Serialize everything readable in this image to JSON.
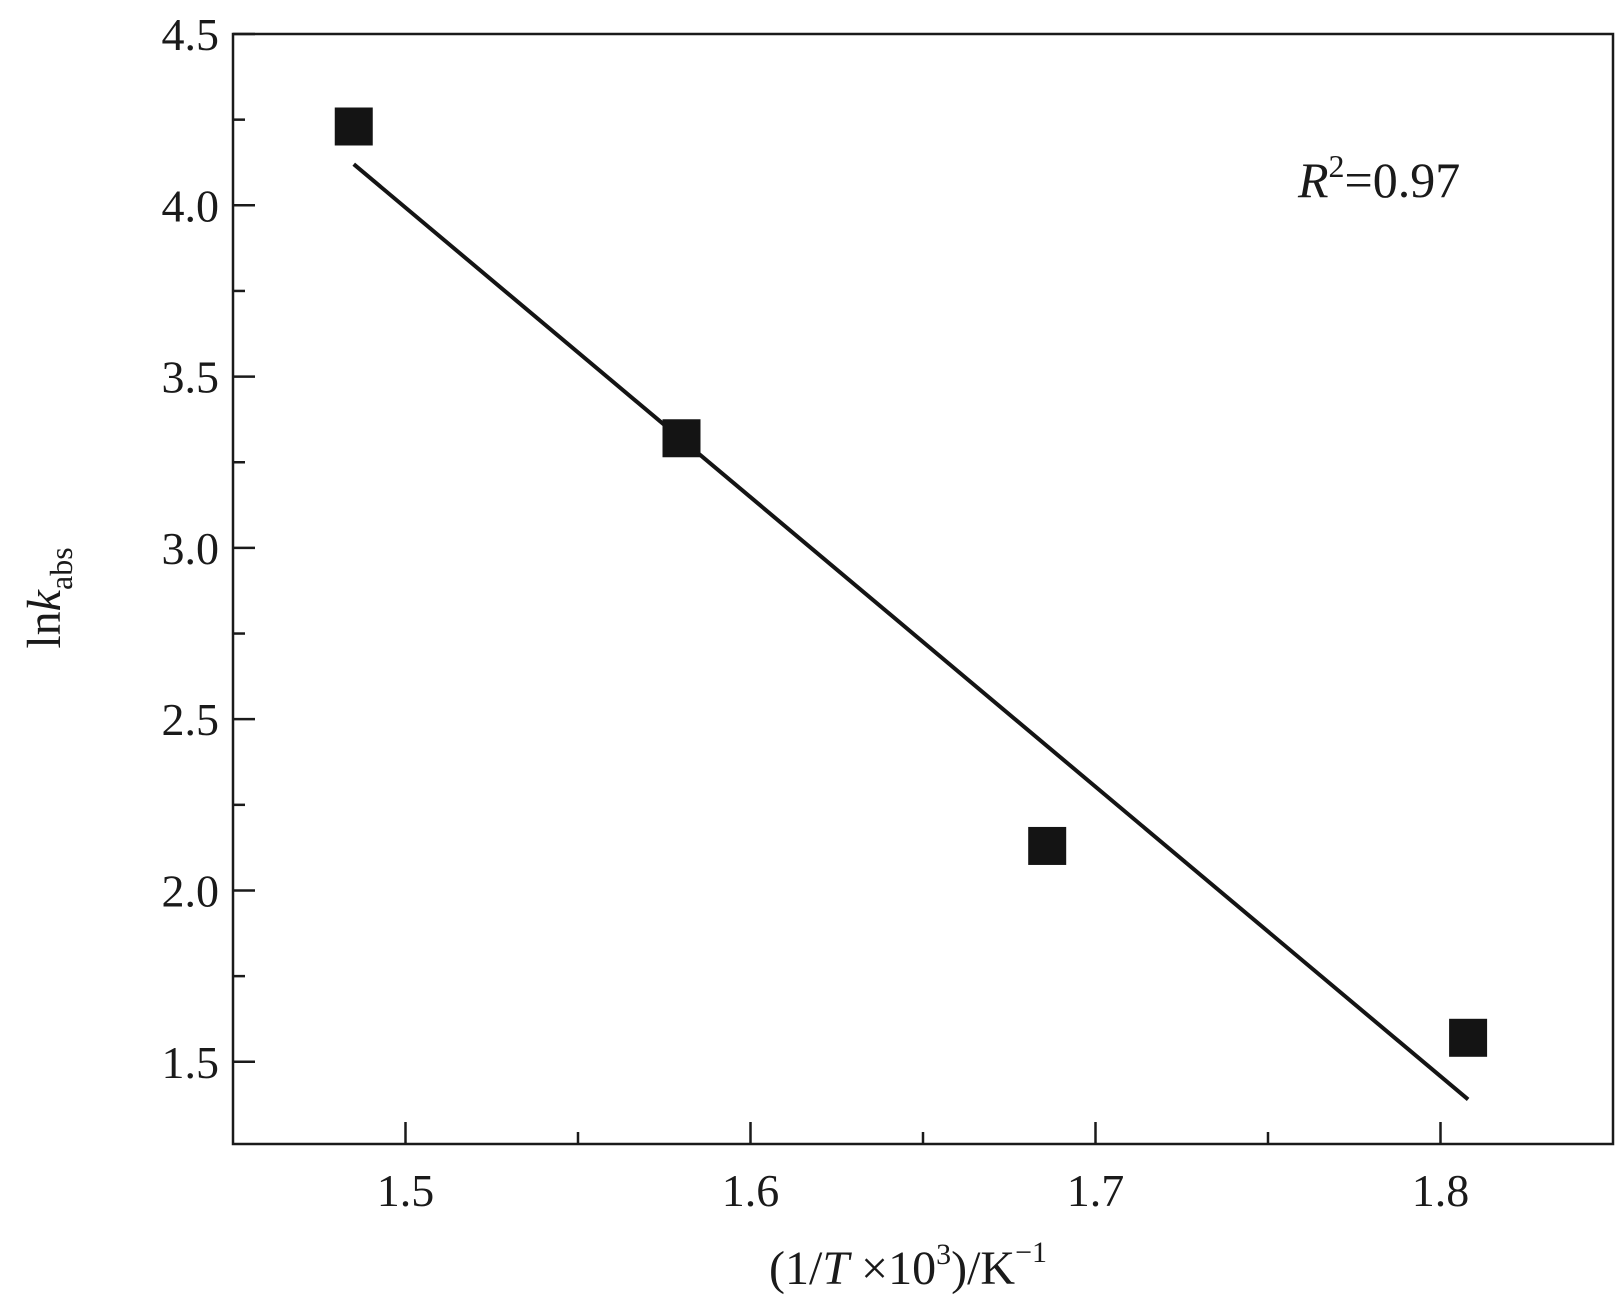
{
  "chart_data": {
    "type": "scatter",
    "x": [
      1.485,
      1.58,
      1.686,
      1.808
    ],
    "y": [
      4.23,
      3.32,
      2.13,
      1.57
    ],
    "fit_line": {
      "x": [
        1.485,
        1.808
      ],
      "y": [
        4.12,
        1.39
      ]
    },
    "xlim": [
      1.45,
      1.85
    ],
    "ylim": [
      1.26,
      4.5
    ],
    "xticks": [
      "1.5",
      "1.6",
      "1.7",
      "1.8"
    ],
    "yticks": [
      "1.5",
      "2.0",
      "2.5",
      "3.0",
      "3.5",
      "4.0",
      "4.5"
    ],
    "xlabel": {
      "open": "(1/",
      "var": "T",
      "mid": " ×10",
      "exp": "3",
      "close": ")/K",
      "unit_exp": "−1"
    },
    "ylabel": {
      "prefix": "ln",
      "var": "k",
      "sub": "abs"
    },
    "annotation": {
      "var": "R",
      "exp": "2",
      "rest": "=0.97"
    },
    "grid": false,
    "marker": "square",
    "marker_color": "#141414",
    "line_color": "#141414"
  }
}
